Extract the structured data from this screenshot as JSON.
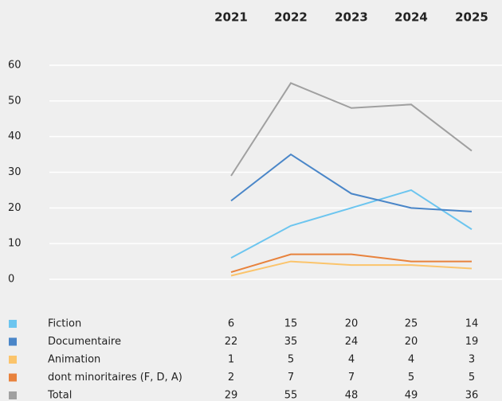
{
  "chart_data": {
    "type": "line",
    "categories": [
      "2021",
      "2022",
      "2023",
      "2024",
      "2025"
    ],
    "series": [
      {
        "name": "Fiction",
        "color": "#6cc5ef",
        "values": [
          6,
          15,
          20,
          25,
          14
        ]
      },
      {
        "name": "Documentaire",
        "color": "#4a86c8",
        "values": [
          22,
          35,
          24,
          20,
          19
        ]
      },
      {
        "name": "Animation",
        "color": "#fbc46b",
        "values": [
          1,
          5,
          4,
          4,
          3
        ]
      },
      {
        "name": "dont minoritaires (F, D, A)",
        "color": "#e8823c",
        "values": [
          2,
          7,
          7,
          5,
          5
        ]
      },
      {
        "name": "Total",
        "color": "#a0a0a0",
        "values": [
          29,
          55,
          48,
          49,
          36
        ]
      }
    ],
    "ylim": [
      0,
      60
    ],
    "yticks": [
      0,
      10,
      20,
      30,
      40,
      50,
      60
    ],
    "grid": true
  }
}
